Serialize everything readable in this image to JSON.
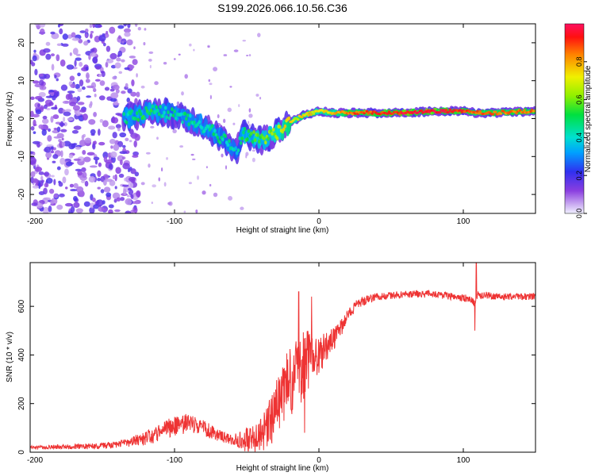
{
  "title": "S199.2026.066.10.56.C36",
  "colors": {
    "snr_line": "#ee3333",
    "axis": "#000000",
    "background": "#ffffff"
  },
  "colorbar": {
    "label": "Normalized spectral amplitude",
    "ticks": [
      "0.0",
      "0.2",
      "0.4",
      "0.6",
      "0.8"
    ],
    "tick_values": [
      0.0,
      0.2,
      0.4,
      0.6,
      0.8
    ],
    "range": [
      0,
      1
    ]
  },
  "chart_data": [
    {
      "type": "heatmap",
      "name": "spectrogram",
      "title": "S199.2026.066.10.56.C36",
      "xlabel": "Height of straight line (km)",
      "ylabel": "Frequency (Hz)",
      "xlim": [
        -200,
        150
      ],
      "ylim": [
        -25,
        25
      ],
      "xticks": [
        -200,
        -100,
        0,
        100
      ],
      "xtick_labels": [
        "-200",
        "-100",
        "0",
        "100"
      ],
      "yticks": [
        -20,
        -10,
        0,
        10,
        20
      ],
      "ytick_labels": [
        "-20",
        "-10",
        "0",
        "10",
        "20"
      ],
      "colorscale": "rainbow (violet=0, red=1)",
      "ridge": {
        "x": [
          -135,
          -125,
          -115,
          -105,
          -95,
          -85,
          -75,
          -65,
          -58,
          -52,
          -45,
          -40,
          -35,
          -30,
          -25,
          -20,
          -15,
          -10,
          -5,
          0,
          10,
          20,
          40,
          60,
          80,
          100,
          110,
          120,
          150
        ],
        "y": [
          0,
          1,
          2,
          1.5,
          0.5,
          -1,
          -3,
          -6,
          -9,
          -4,
          -5,
          -6,
          -5,
          -4,
          -3,
          -1,
          0,
          1,
          1.5,
          2,
          1.5,
          1.5,
          1.5,
          1.5,
          2,
          2,
          1.5,
          1.5,
          2
        ],
        "amp": [
          0.45,
          0.5,
          0.5,
          0.45,
          0.45,
          0.45,
          0.45,
          0.45,
          0.4,
          0.5,
          0.55,
          0.6,
          0.6,
          0.65,
          0.7,
          0.75,
          0.7,
          0.75,
          0.75,
          0.7,
          0.75,
          0.85,
          0.9,
          0.95,
          0.95,
          0.9,
          0.85,
          0.85,
          0.85
        ]
      },
      "noise_region_x": [
        -200,
        -140
      ]
    },
    {
      "type": "line",
      "name": "snr",
      "xlabel": "Height of straight line (km)",
      "ylabel": "SNR (10 * v/v)",
      "xlim": [
        -200,
        150
      ],
      "ylim": [
        0,
        780
      ],
      "xticks": [
        -200,
        -100,
        0,
        100
      ],
      "xtick_labels": [
        "-200",
        "-100",
        "0",
        "100"
      ],
      "yticks": [
        0,
        200,
        400,
        600
      ],
      "ytick_labels": [
        "0",
        "200",
        "400",
        "600"
      ],
      "trend": {
        "x": [
          -200,
          -150,
          -130,
          -115,
          -105,
          -100,
          -90,
          -80,
          -70,
          -60,
          -50,
          -45,
          -40,
          -35,
          -30,
          -25,
          -20,
          -15,
          -10,
          -5,
          0,
          5,
          10,
          15,
          20,
          25,
          30,
          40,
          60,
          80,
          100,
          105,
          108,
          110,
          112,
          115,
          120,
          150
        ],
        "y": [
          20,
          25,
          40,
          70,
          100,
          110,
          120,
          100,
          70,
          50,
          50,
          50,
          60,
          110,
          170,
          240,
          290,
          330,
          360,
          390,
          400,
          430,
          460,
          510,
          560,
          600,
          620,
          640,
          650,
          650,
          635,
          630,
          610,
          650,
          640,
          650,
          640,
          640
        ]
      },
      "noise_amplitude": {
        "x": [
          -200,
          -140,
          -100,
          -60,
          -40,
          -30,
          -20,
          -10,
          0,
          10,
          20,
          40,
          100,
          150
        ],
        "y": [
          6,
          15,
          45,
          20,
          80,
          120,
          150,
          140,
          80,
          50,
          25,
          15,
          15,
          15
        ]
      },
      "spikes": [
        {
          "x": -14,
          "y": 660
        },
        {
          "x": -10,
          "y": 80
        },
        {
          "x": -5,
          "y": 640
        },
        {
          "x": 109,
          "y": 780
        },
        {
          "x": 108,
          "y": 500
        }
      ]
    }
  ]
}
